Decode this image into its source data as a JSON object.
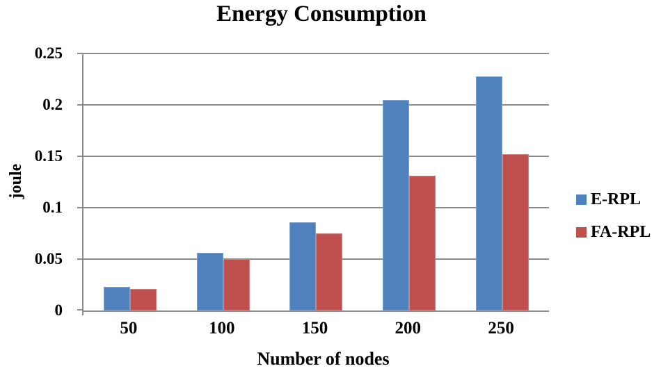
{
  "chart_data": {
    "type": "bar",
    "title": "Energy Consumption",
    "xlabel": "Number of nodes",
    "ylabel": "joule",
    "categories": [
      "50",
      "100",
      "150",
      "200",
      "250"
    ],
    "series": [
      {
        "name": "E-RPL",
        "color": "#4F81BD",
        "values": [
          0.023,
          0.056,
          0.086,
          0.205,
          0.228
        ]
      },
      {
        "name": "FA-RPL",
        "color": "#C0504D",
        "values": [
          0.021,
          0.05,
          0.075,
          0.131,
          0.152
        ]
      }
    ],
    "ylim": [
      0,
      0.25
    ],
    "yticks": [
      {
        "value": 0,
        "label": "0"
      },
      {
        "value": 0.05,
        "label": "0.05"
      },
      {
        "value": 0.1,
        "label": "0.1"
      },
      {
        "value": 0.15,
        "label": "0.15"
      },
      {
        "value": 0.2,
        "label": "0.2"
      },
      {
        "value": 0.25,
        "label": "0.25"
      }
    ],
    "grid": "horizontal",
    "legend_position": "right",
    "colors": {
      "gridline": "#8C8C8C",
      "axis": "#8C8C8C",
      "text": "#000000",
      "background": "#FFFFFF"
    }
  }
}
